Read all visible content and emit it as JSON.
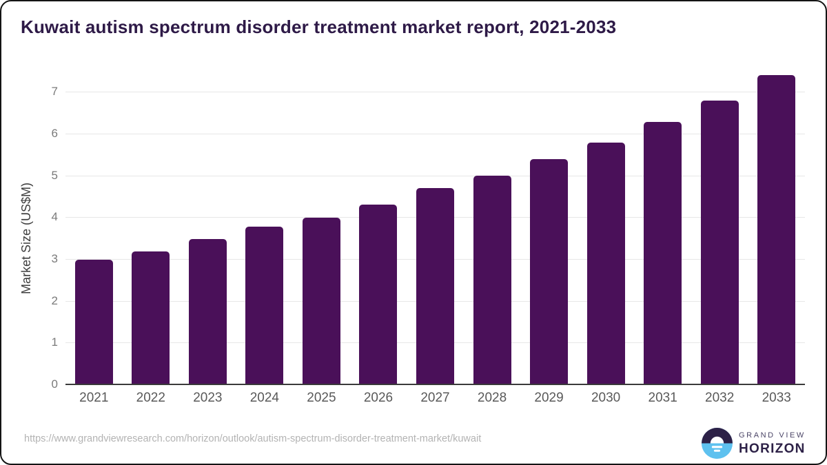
{
  "chart_data": {
    "type": "bar",
    "title": "Kuwait autism spectrum disorder treatment market report, 2021-2033",
    "xlabel": "",
    "ylabel": "Market Size (US$M)",
    "categories": [
      "2021",
      "2022",
      "2023",
      "2024",
      "2025",
      "2026",
      "2027",
      "2028",
      "2029",
      "2030",
      "2031",
      "2032",
      "2033"
    ],
    "values": [
      2.98,
      3.18,
      3.48,
      3.78,
      3.98,
      4.3,
      4.7,
      5.0,
      5.39,
      5.78,
      6.28,
      6.78,
      7.39
    ],
    "yticks": [
      0,
      1,
      2,
      3,
      4,
      5,
      6,
      7
    ],
    "ylim": [
      0,
      7.4
    ],
    "grid": "horizontal",
    "legend": "none",
    "bar_color": "#4a1059"
  },
  "colors": {
    "title_text": "#2e1a47",
    "bar": "#4a1059",
    "gridline": "#e7e7e7",
    "axis_line": "#3a3a3a",
    "tick_text": "#7a7a7a",
    "footer_text": "#b3b3b3",
    "logo_navy": "#2d2147",
    "logo_blue": "#5ec1ef"
  },
  "footer": {
    "source_url": "https://www.grandviewresearch.com/horizon/outlook/autism-spectrum-disorder-treatment-market/kuwait",
    "logo": {
      "brand_top": "GRAND VIEW",
      "brand_bottom": "HORIZON"
    }
  }
}
